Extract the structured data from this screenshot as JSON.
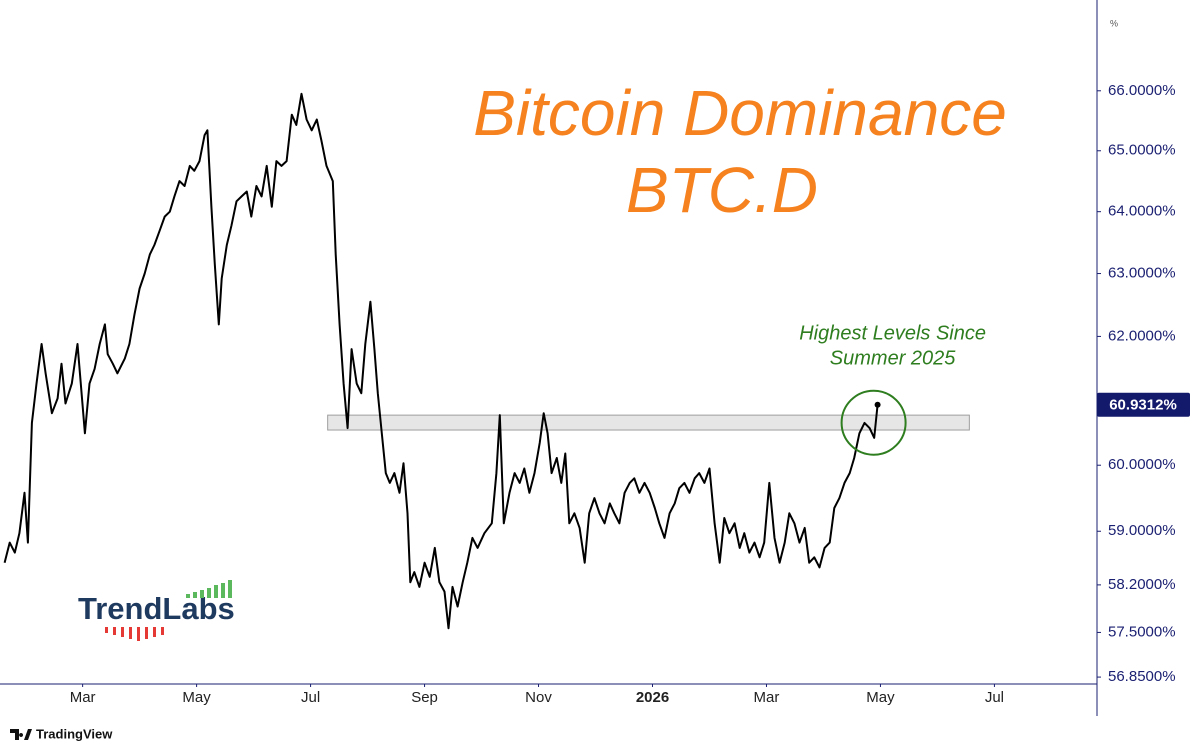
{
  "chart_data": {
    "type": "line",
    "title": "Bitcoin Dominance",
    "subtitle": "BTC.D",
    "y_unit": "%",
    "annotation": [
      "Highest Levels Since",
      "Summer 2025"
    ],
    "logo": "TrendLabs",
    "footer": "TradingView",
    "color": "#000000",
    "title_color": "#f5821f",
    "annotation_color": "#2e7d1f",
    "axis_color": "#1a1f71",
    "ylog": true,
    "grid": false,
    "ylim": [
      56.75,
      67.2
    ],
    "yticks": [
      {
        "value": 66,
        "label": "66.0000%"
      },
      {
        "value": 65,
        "label": "65.0000%"
      },
      {
        "value": 64,
        "label": "64.0000%"
      },
      {
        "value": 63,
        "label": "63.0000%"
      },
      {
        "value": 62,
        "label": "62.0000%"
      },
      {
        "value": 60,
        "label": "60.0000%"
      },
      {
        "value": 59,
        "label": "59.0000%"
      },
      {
        "value": 58.2,
        "label": "58.2000%"
      },
      {
        "value": 57.5,
        "label": "57.5000%"
      },
      {
        "value": 56.85,
        "label": "56.8500%"
      }
    ],
    "xlim": [
      0.55,
      19.8
    ],
    "xticks": [
      {
        "value": 2,
        "label": "Mar"
      },
      {
        "value": 4,
        "label": "May"
      },
      {
        "value": 6,
        "label": "Jul"
      },
      {
        "value": 8,
        "label": "Sep"
      },
      {
        "value": 10,
        "label": "Nov"
      },
      {
        "value": 12,
        "label": "2026"
      },
      {
        "value": 14,
        "label": "Mar"
      },
      {
        "value": 16,
        "label": "May"
      },
      {
        "value": 18,
        "label": "Jul"
      }
    ],
    "current_value": {
      "value": 60.9312,
      "label": "60.9312%"
    },
    "band": {
      "xlim": [
        6.3,
        17.56
      ],
      "ylim": [
        60.54,
        60.77
      ]
    },
    "x": [
      0.63,
      0.72,
      0.81,
      0.89,
      0.98,
      1.04,
      1.11,
      1.19,
      1.28,
      1.35,
      1.46,
      1.56,
      1.63,
      1.7,
      1.81,
      1.91,
      2.04,
      2.12,
      2.21,
      2.3,
      2.39,
      2.44,
      2.53,
      2.61,
      2.74,
      2.82,
      2.91,
      3.0,
      3.09,
      3.18,
      3.26,
      3.35,
      3.44,
      3.53,
      3.61,
      3.7,
      3.79,
      3.88,
      3.96,
      4.05,
      4.14,
      4.19,
      4.26,
      4.32,
      4.39,
      4.44,
      4.53,
      4.61,
      4.7,
      4.79,
      4.88,
      4.96,
      5.05,
      5.14,
      5.23,
      5.32,
      5.4,
      5.49,
      5.58,
      5.67,
      5.75,
      5.84,
      5.93,
      6.02,
      6.11,
      6.19,
      6.28,
      6.39,
      6.44,
      6.51,
      6.58,
      6.65,
      6.72,
      6.81,
      6.89,
      6.96,
      7.05,
      7.12,
      7.18,
      7.25,
      7.32,
      7.39,
      7.47,
      7.56,
      7.63,
      7.7,
      7.75,
      7.82,
      7.91,
      8.0,
      8.09,
      8.18,
      8.26,
      8.35,
      8.42,
      8.49,
      8.58,
      8.67,
      8.75,
      8.84,
      8.93,
      9.05,
      9.18,
      9.26,
      9.32,
      9.39,
      9.49,
      9.58,
      9.67,
      9.75,
      9.84,
      9.93,
      10.02,
      10.09,
      10.16,
      10.23,
      10.32,
      10.4,
      10.47,
      10.54,
      10.63,
      10.72,
      10.81,
      10.89,
      10.98,
      11.07,
      11.16,
      11.25,
      11.33,
      11.42,
      11.51,
      11.6,
      11.68,
      11.77,
      11.86,
      11.95,
      12.04,
      12.12,
      12.21,
      12.3,
      12.39,
      12.47,
      12.56,
      12.65,
      12.74,
      12.82,
      12.91,
      13.0,
      13.09,
      13.18,
      13.26,
      13.35,
      13.44,
      13.53,
      13.61,
      13.7,
      13.79,
      13.88,
      13.96,
      14.05,
      14.14,
      14.23,
      14.32,
      14.4,
      14.49,
      14.58,
      14.67,
      14.75,
      14.84,
      14.93,
      15.02,
      15.11,
      15.19,
      15.28,
      15.37,
      15.46,
      15.54,
      15.63,
      15.72,
      15.81,
      15.89,
      15.95
    ],
    "values": [
      58.53,
      58.83,
      58.68,
      58.97,
      59.58,
      58.83,
      60.65,
      61.26,
      61.88,
      61.42,
      60.8,
      61.03,
      61.57,
      60.95,
      61.26,
      61.88,
      60.49,
      61.26,
      61.49,
      61.88,
      62.19,
      61.72,
      61.57,
      61.42,
      61.65,
      61.88,
      62.35,
      62.76,
      63,
      63.31,
      63.46,
      63.69,
      63.92,
      64,
      64.25,
      64.5,
      64.42,
      64.75,
      64.67,
      64.83,
      65.26,
      65.34,
      64.08,
      63.15,
      62.19,
      62.92,
      63.46,
      63.77,
      64.17,
      64.25,
      64.33,
      63.92,
      64.42,
      64.25,
      64.75,
      64.08,
      64.83,
      64.75,
      64.83,
      65.6,
      65.43,
      65.95,
      65.52,
      65.34,
      65.52,
      65.17,
      64.75,
      64.5,
      63.31,
      62.19,
      61.26,
      60.57,
      61.8,
      61.26,
      61.11,
      61.88,
      62.55,
      61.8,
      61.11,
      60.49,
      59.88,
      59.73,
      59.88,
      59.58,
      60.03,
      59.27,
      58.24,
      58.39,
      58.17,
      58.53,
      58.32,
      58.75,
      58.24,
      58.1,
      57.56,
      58.17,
      57.88,
      58.24,
      58.53,
      58.9,
      58.75,
      58.97,
      59.12,
      59.88,
      60.77,
      59.12,
      59.58,
      59.88,
      59.73,
      59.95,
      59.58,
      59.88,
      60.34,
      60.8,
      60.49,
      59.88,
      60.11,
      59.73,
      60.18,
      59.12,
      59.27,
      59.05,
      58.53,
      59.27,
      59.5,
      59.27,
      59.12,
      59.42,
      59.27,
      59.12,
      59.58,
      59.73,
      59.8,
      59.58,
      59.73,
      59.58,
      59.35,
      59.12,
      58.9,
      59.27,
      59.42,
      59.65,
      59.73,
      59.58,
      59.8,
      59.88,
      59.73,
      59.95,
      59.12,
      58.53,
      59.2,
      58.97,
      59.12,
      58.75,
      58.97,
      58.68,
      58.83,
      58.61,
      58.83,
      59.73,
      58.9,
      58.53,
      58.83,
      59.27,
      59.12,
      58.83,
      59.05,
      58.53,
      58.61,
      58.46,
      58.75,
      58.83,
      59.35,
      59.5,
      59.73,
      59.88,
      60.11,
      60.49,
      60.65,
      60.57,
      60.42,
      60.9312
    ]
  }
}
